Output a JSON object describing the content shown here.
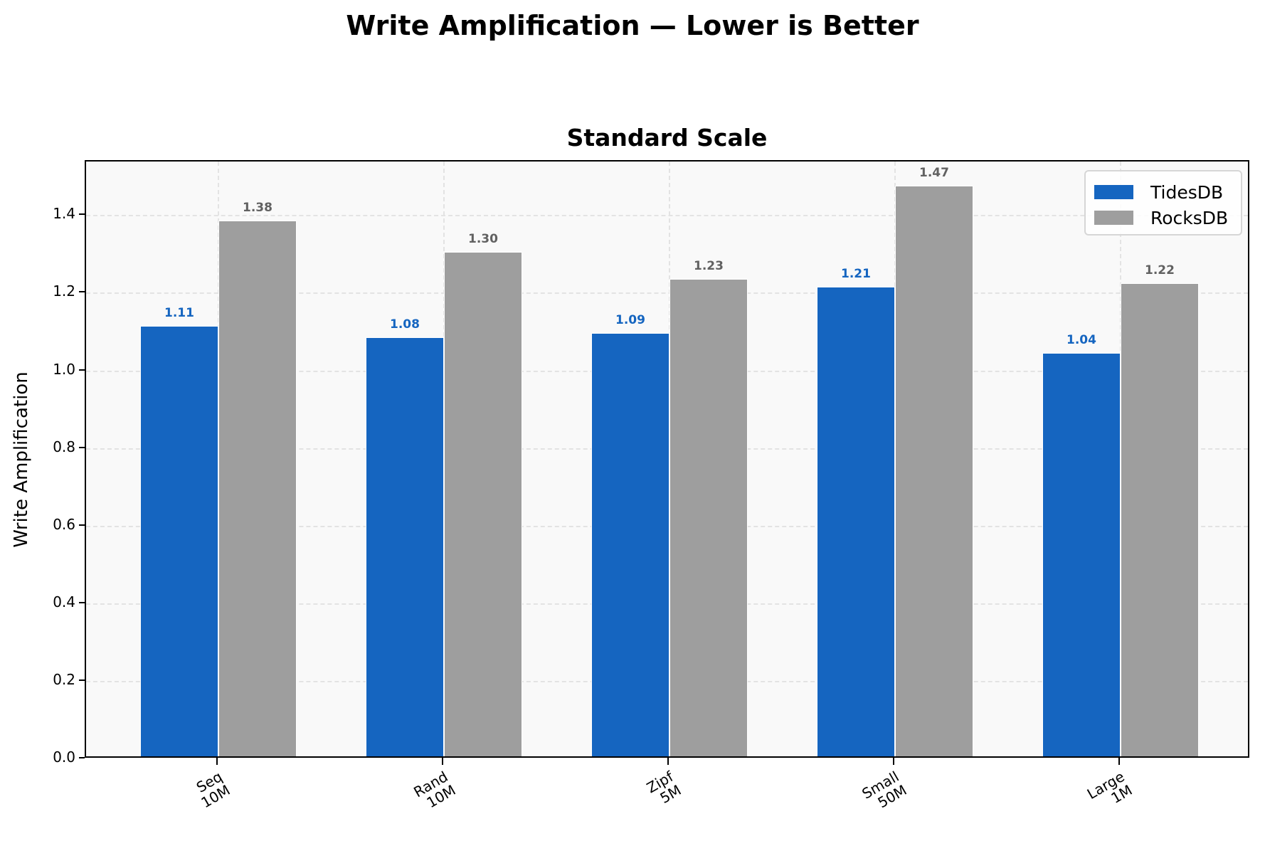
{
  "figure": {
    "suptitle": "Write Amplification — Lower is Better",
    "axes_title": "Standard Scale",
    "ylabel": "Write Amplification",
    "colors": {
      "TidesDB": "#1565c0",
      "RocksDB": "#9e9e9e",
      "tides_label": "#1565c0",
      "rocks_label": "#616161"
    }
  },
  "legend": {
    "items": [
      {
        "label": "TidesDB",
        "color": "#1565c0"
      },
      {
        "label": "RocksDB",
        "color": "#9e9e9e"
      }
    ]
  },
  "yticks": [
    "0.0",
    "0.2",
    "0.4",
    "0.6",
    "0.8",
    "1.0",
    "1.2",
    "1.4"
  ],
  "xticks": [
    {
      "line1": "Seq",
      "line2": "10M"
    },
    {
      "line1": "Rand",
      "line2": "10M"
    },
    {
      "line1": "Zipf",
      "line2": "5M"
    },
    {
      "line1": "Small",
      "line2": "50M"
    },
    {
      "line1": "Large",
      "line2": "1M"
    }
  ],
  "bars": {
    "TidesDB": [
      "1.11",
      "1.08",
      "1.09",
      "1.21",
      "1.04"
    ],
    "RocksDB": [
      "1.38",
      "1.30",
      "1.23",
      "1.47",
      "1.22"
    ]
  },
  "chart_data": {
    "type": "bar",
    "title": "Write Amplification — Lower is Better",
    "subtitle": "Standard Scale",
    "categories": [
      "Seq\n10M",
      "Rand\n10M",
      "Zipf\n5M",
      "Small\n50M",
      "Large\n1M"
    ],
    "series": [
      {
        "name": "TidesDB",
        "values": [
          1.11,
          1.08,
          1.09,
          1.21,
          1.04
        ],
        "color": "#1565c0"
      },
      {
        "name": "RocksDB",
        "values": [
          1.38,
          1.3,
          1.23,
          1.47,
          1.22
        ],
        "color": "#9e9e9e"
      }
    ],
    "xlabel": "",
    "ylabel": "Write Amplification",
    "ylim": [
      0,
      1.54
    ],
    "yticks": [
      0.0,
      0.2,
      0.4,
      0.6,
      0.8,
      1.0,
      1.2,
      1.4
    ],
    "grid": true,
    "legend_position": "upper right",
    "data_labels": true
  }
}
